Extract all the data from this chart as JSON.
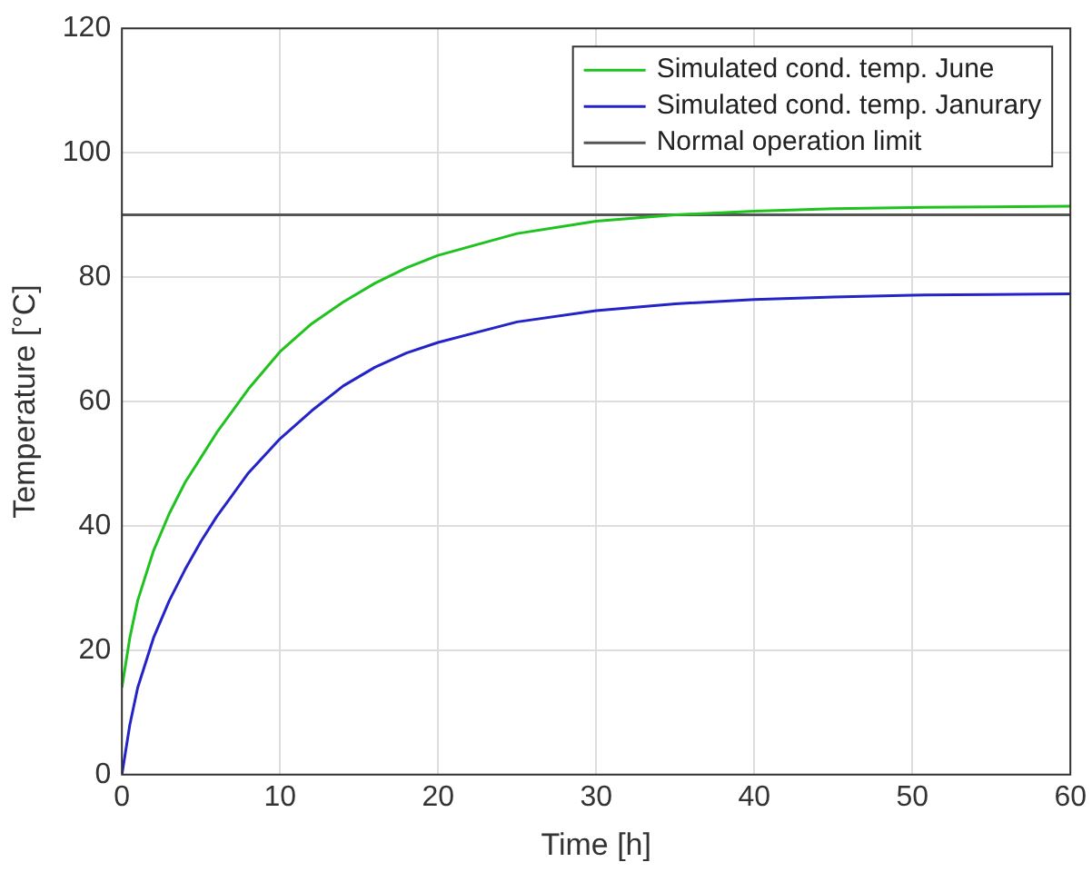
{
  "chart_data": {
    "type": "line",
    "xlabel": "Time [h]",
    "ylabel": "Temperature [°C]",
    "x": [
      0,
      0.5,
      1,
      2,
      3,
      4,
      5,
      6,
      8,
      10,
      12,
      14,
      16,
      18,
      20,
      25,
      30,
      35,
      40,
      45,
      50,
      55,
      60
    ],
    "series": [
      {
        "name": "Simulated cond. temp. June",
        "color": "#1fc21f",
        "values": [
          14,
          22,
          28,
          36,
          42,
          47,
          51,
          55,
          62,
          68,
          72.5,
          76,
          79,
          81.5,
          83.5,
          87,
          89,
          90,
          90.6,
          91,
          91.2,
          91.3,
          91.4
        ]
      },
      {
        "name": "Simulated cond. temp. Janurary",
        "color": "#2323c8",
        "values": [
          0,
          8,
          14,
          22,
          28,
          33,
          37.5,
          41.5,
          48.5,
          54,
          58.5,
          62.5,
          65.5,
          67.8,
          69.5,
          72.8,
          74.6,
          75.7,
          76.4,
          76.8,
          77.1,
          77.2,
          77.3
        ]
      }
    ],
    "ref_lines": [
      {
        "axis": "y",
        "value": 90,
        "label": "Normal operation limit",
        "color": "#555555"
      }
    ],
    "xlim": [
      0,
      60
    ],
    "xticks": [
      0,
      10,
      20,
      30,
      40,
      50,
      60
    ],
    "ylim": [
      0,
      120
    ],
    "yticks": [
      0,
      20,
      40,
      60,
      80,
      100,
      120
    ],
    "grid": true,
    "legend": "top right",
    "marker": "none",
    "line_style": "solid"
  }
}
